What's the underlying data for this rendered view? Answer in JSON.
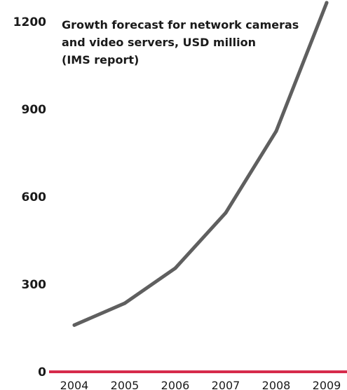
{
  "chart_data": {
    "type": "line",
    "title_lines": [
      "Growth forecast for network cameras",
      "and video servers, USD million",
      "(IMS report)"
    ],
    "x": [
      "2004",
      "2005",
      "2006",
      "2007",
      "2008",
      "2009"
    ],
    "series": [
      {
        "values": [
          160,
          235,
          355,
          545,
          825,
          1265
        ]
      }
    ],
    "ylim": [
      0,
      1265
    ],
    "y_ticks": [
      "0",
      "300",
      "600",
      "900",
      "1200"
    ],
    "grid": false,
    "legend": "none",
    "colors": {
      "line": "#5f5f5f",
      "baseline": "#d62b4b",
      "text": "#1a1a1a"
    }
  }
}
